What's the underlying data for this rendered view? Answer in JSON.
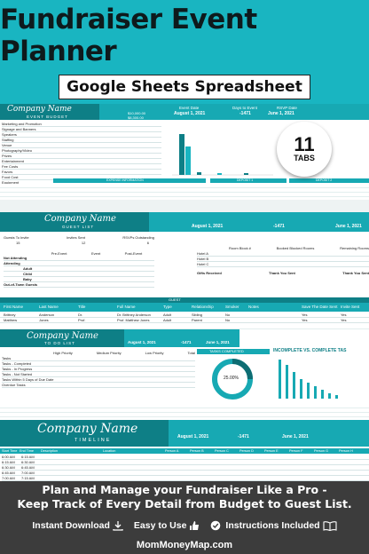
{
  "header": {
    "title": "Fundraiser Event Planner",
    "subtitle": "Google Sheets Spreadsheet"
  },
  "badge": {
    "number": "11",
    "label": "TABS"
  },
  "budget": {
    "company": "Company Name",
    "section": "EVENT BUDGET",
    "event_date_label": "Event Date",
    "event_date": "August 1, 2021",
    "days_label": "Days to Event",
    "days": "-1471",
    "rsvp_label": "RSVP Date",
    "rsvp": "June 1, 2021",
    "total_budget": "$10,000.00",
    "remaining": "$8,300.00",
    "rows": [
      "Marketing and Promotion",
      "Signage and Banners",
      "Speakers",
      "Staffing",
      "Venue",
      "Photography/Video",
      "Prizes",
      "Entertainment",
      "Fee Costs",
      "Favors",
      "Food Cost",
      "Equipment",
      "Taxes and Gifts",
      "Miscellaneous"
    ],
    "expense_title": "EXPENSE INFORMATION",
    "deposit1": "DEPOSIT 1",
    "deposit2": "DEPOSIT 2"
  },
  "guest": {
    "company": "Company Name",
    "section": "GUEST LIST",
    "event_date": "August 1, 2021",
    "days": "-1471",
    "rsvp": "June 1, 2021",
    "invite_labels": [
      "Guests To Invite",
      "Invites Sent",
      "RSVPs Outstanding"
    ],
    "invite_values": [
      "15",
      "12",
      "6"
    ],
    "attend_rows": [
      "Not Attending",
      "Attending",
      "Adult",
      "Child",
      "Baby",
      "Out-of-Town Guests"
    ],
    "col_heads": [
      "Pre-Event",
      "Event",
      "Post-Event"
    ],
    "hotel_heads": [
      "Room Block #",
      "Booked Blocked Rooms",
      "Remaining Rooms"
    ],
    "hotels": [
      "Hotel A",
      "Hotel B",
      "Hotel C"
    ],
    "gift_heads": [
      "Gifts Received",
      "Thank You Sent",
      "Thank You Sent"
    ],
    "table_title": "GUEST",
    "table_heads": [
      "First Name",
      "Last Name",
      "Title",
      "Full Name",
      "Type",
      "Relationship",
      "Smoker",
      "Notes",
      "Save The Date Sent",
      "Invite Sent"
    ],
    "table_rows": [
      [
        "Brittney",
        "Anderson",
        "Dr.",
        "Dr. Brittney Anderson",
        "Adult",
        "Sibling",
        "No",
        "",
        "Yes",
        "Yes"
      ],
      [
        "Matthew",
        "Jones",
        "Prof.",
        "Prof. Matthew Jones",
        "Adult",
        "Parent",
        "No",
        "",
        "Yes",
        "Yes"
      ]
    ]
  },
  "todo": {
    "company": "Company Name",
    "section": "TO DO LIST",
    "event_date": "August 1, 2021",
    "days": "-1471",
    "rsvp": "June 1, 2021",
    "heads": [
      "High Priority",
      "Medium Priority",
      "Low Priority",
      "Total"
    ],
    "rows": [
      "Tasks",
      "Tasks - Completed",
      "Tasks - In Progress",
      "Tasks - Not Started",
      "Tasks Within 5 Days of Due Date",
      "Overdue Tasks"
    ],
    "chart_title": "TASKS COMPLETED",
    "percent": "25.00%",
    "bar_title": "INCOMPLETE VS. COMPLETE TAS"
  },
  "timeline": {
    "company": "Company Name",
    "section": "TIMELINE",
    "event_date": "August 1, 2021",
    "days": "-1471",
    "rsvp": "June 1, 2021",
    "heads": [
      "Start Time",
      "End Time",
      "Description",
      "Location"
    ],
    "times": [
      [
        "6:00 AM",
        "6:15 AM"
      ],
      [
        "6:15 AM",
        "6:30 AM"
      ],
      [
        "6:30 AM",
        "6:45 AM"
      ],
      [
        "6:45 AM",
        "7:00 AM"
      ],
      [
        "7:00 AM",
        "7:15 AM"
      ]
    ],
    "persons": [
      "Person A",
      "Person B",
      "Person C",
      "Person D",
      "Person E",
      "Person F",
      "Person G",
      "Person H"
    ]
  },
  "footer": {
    "tagline1": "Plan and Manage your Fundraiser Like a Pro -",
    "tagline2": "Keep Track of Every Detail from Budget to Guest List.",
    "feature1": "Instant Download",
    "feature2": "Easy to Use",
    "feature3": "Instructions Included",
    "site": "MomMoneyMap.com"
  },
  "colors": {
    "teal": "#19b5c1",
    "dark_teal": "#0e7f86",
    "footer": "#3c3c3c"
  }
}
